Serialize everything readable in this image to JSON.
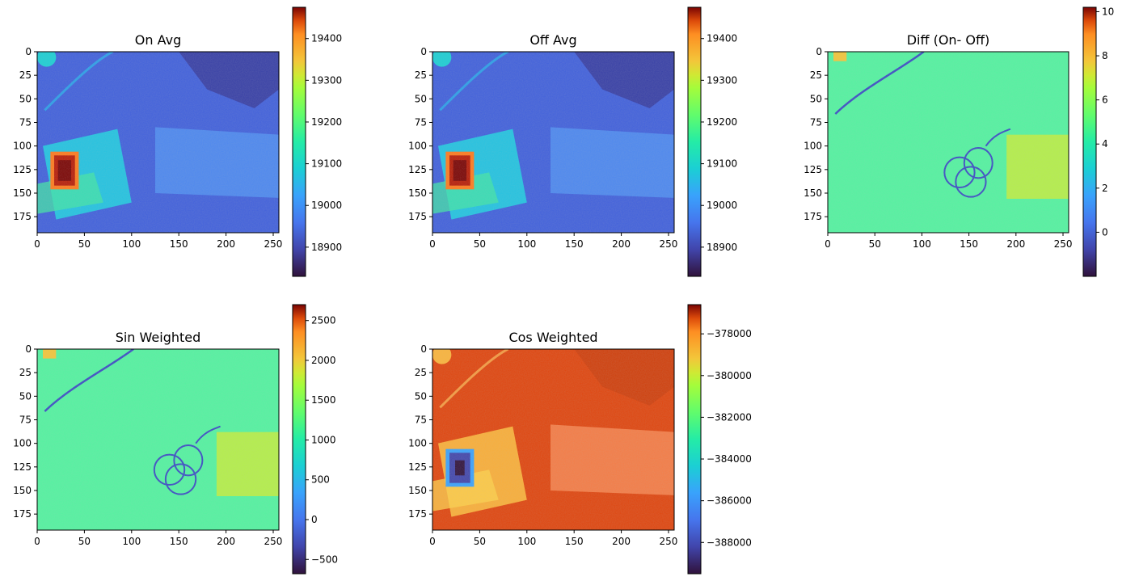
{
  "chart_data": [
    {
      "type": "heatmap",
      "title": "On Avg",
      "xlim": [
        0,
        256
      ],
      "ylim": [
        192,
        0
      ],
      "x_ticks": [
        0,
        50,
        100,
        150,
        200,
        250
      ],
      "y_ticks": [
        0,
        25,
        50,
        75,
        100,
        125,
        150,
        175
      ],
      "x_tick_labels": [
        "0",
        "50",
        "100",
        "150",
        "200",
        "250"
      ],
      "y_tick_labels": [
        "0",
        "25",
        "50",
        "75",
        "100",
        "125",
        "150",
        "175"
      ],
      "colormap": "turbo",
      "colorbar": {
        "range": [
          18830,
          19475
        ],
        "ticks": [
          18900,
          19000,
          19100,
          19200,
          19300,
          19400
        ],
        "tick_labels": [
          "18900",
          "19000",
          "19100",
          "19200",
          "19300",
          "19400"
        ]
      },
      "scene": "signal"
    },
    {
      "type": "heatmap",
      "title": "Off Avg",
      "xlim": [
        0,
        256
      ],
      "ylim": [
        192,
        0
      ],
      "x_ticks": [
        0,
        50,
        100,
        150,
        200,
        250
      ],
      "y_ticks": [
        0,
        25,
        50,
        75,
        100,
        125,
        150,
        175
      ],
      "x_tick_labels": [
        "0",
        "50",
        "100",
        "150",
        "200",
        "250"
      ],
      "y_tick_labels": [
        "0",
        "25",
        "50",
        "75",
        "100",
        "125",
        "150",
        "175"
      ],
      "colormap": "turbo",
      "colorbar": {
        "range": [
          18830,
          19475
        ],
        "ticks": [
          18900,
          19000,
          19100,
          19200,
          19300,
          19400
        ],
        "tick_labels": [
          "18900",
          "19000",
          "19100",
          "19200",
          "19300",
          "19400"
        ]
      },
      "scene": "signal"
    },
    {
      "type": "heatmap",
      "title": "Diff (On- Off)",
      "xlim": [
        0,
        256
      ],
      "ylim": [
        192,
        0
      ],
      "x_ticks": [
        0,
        50,
        100,
        150,
        200,
        250
      ],
      "y_ticks": [
        0,
        25,
        50,
        75,
        100,
        125,
        150,
        175
      ],
      "x_tick_labels": [
        "0",
        "50",
        "100",
        "150",
        "200",
        "250"
      ],
      "y_tick_labels": [
        "0",
        "25",
        "50",
        "75",
        "100",
        "125",
        "150",
        "175"
      ],
      "colormap": "turbo",
      "colorbar": {
        "range": [
          -2.0,
          10.2
        ],
        "ticks": [
          0,
          2,
          4,
          6,
          8,
          10
        ],
        "tick_labels": [
          "0",
          "2",
          "4",
          "6",
          "8",
          "10"
        ]
      },
      "scene": "diff"
    },
    {
      "type": "heatmap",
      "title": "Sin Weighted",
      "xlim": [
        0,
        256
      ],
      "ylim": [
        192,
        0
      ],
      "x_ticks": [
        0,
        50,
        100,
        150,
        200,
        250
      ],
      "y_ticks": [
        0,
        25,
        50,
        75,
        100,
        125,
        150,
        175
      ],
      "x_tick_labels": [
        "0",
        "50",
        "100",
        "150",
        "200",
        "250"
      ],
      "y_tick_labels": [
        "0",
        "25",
        "50",
        "75",
        "100",
        "125",
        "150",
        "175"
      ],
      "colormap": "turbo",
      "colorbar": {
        "range": [
          -680,
          2700
        ],
        "ticks": [
          -500,
          0,
          500,
          1000,
          1500,
          2000,
          2500
        ],
        "tick_labels": [
          "−500",
          "0",
          "500",
          "1000",
          "1500",
          "2000",
          "2500"
        ]
      },
      "scene": "diff"
    },
    {
      "type": "heatmap",
      "title": "Cos Weighted",
      "xlim": [
        0,
        256
      ],
      "ylim": [
        192,
        0
      ],
      "x_ticks": [
        0,
        50,
        100,
        150,
        200,
        250
      ],
      "y_ticks": [
        0,
        25,
        50,
        75,
        100,
        125,
        150,
        175
      ],
      "x_tick_labels": [
        "0",
        "50",
        "100",
        "150",
        "200",
        "250"
      ],
      "y_tick_labels": [
        "0",
        "25",
        "50",
        "75",
        "100",
        "125",
        "150",
        "175"
      ],
      "colormap": "turbo",
      "colorbar": {
        "range": [
          -389500,
          -376600
        ],
        "ticks": [
          -388000,
          -386000,
          -384000,
          -382000,
          -380000,
          -378000
        ],
        "tick_labels": [
          "−388000",
          "−386000",
          "−384000",
          "−382000",
          "−380000",
          "−378000"
        ]
      },
      "scene": "inverted"
    }
  ]
}
